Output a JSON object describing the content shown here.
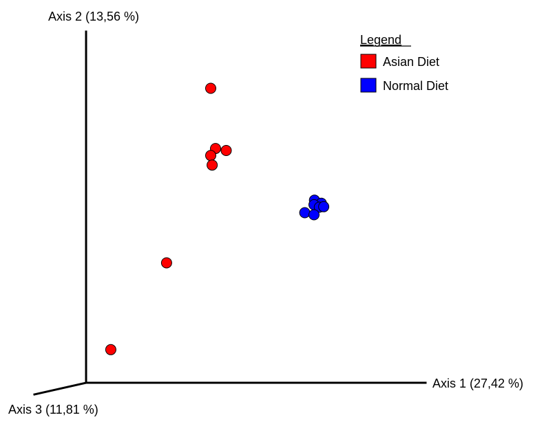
{
  "chart_data": {
    "type": "scatter",
    "projection": "3d-pcoa",
    "axes": {
      "x": {
        "label": "Axis 1 (27,42 %)",
        "range": [
          -0.3,
          0.4
        ]
      },
      "y": {
        "label": "Axis 2 (13,56 %)",
        "range": [
          -0.3,
          0.4
        ]
      },
      "z": {
        "label": "Axis 3 (11,81 %)"
      }
    },
    "grid": false,
    "legend": {
      "title": "Legend",
      "position": "top-right",
      "entries": [
        {
          "label": "Asian Diet",
          "color": "#ff0000"
        },
        {
          "label": "Normal Diet",
          "color": "#0000ff"
        }
      ]
    },
    "series": [
      {
        "name": "Asian Diet",
        "color": "#ff0000",
        "points": [
          {
            "x": -0.043,
            "y": 0.287
          },
          {
            "x": -0.033,
            "y": 0.167
          },
          {
            "x": -0.011,
            "y": 0.163
          },
          {
            "x": -0.043,
            "y": 0.153
          },
          {
            "x": -0.04,
            "y": 0.134
          },
          {
            "x": -0.134,
            "y": -0.061
          },
          {
            "x": -0.249,
            "y": -0.234
          }
        ]
      },
      {
        "name": "Normal Diet",
        "color": "#0000ff",
        "points": [
          {
            "x": 0.171,
            "y": 0.064
          },
          {
            "x": 0.185,
            "y": 0.058
          },
          {
            "x": 0.17,
            "y": 0.055
          },
          {
            "x": 0.181,
            "y": 0.05
          },
          {
            "x": 0.19,
            "y": 0.051
          },
          {
            "x": 0.151,
            "y": 0.039
          },
          {
            "x": 0.17,
            "y": 0.035
          }
        ]
      }
    ]
  }
}
